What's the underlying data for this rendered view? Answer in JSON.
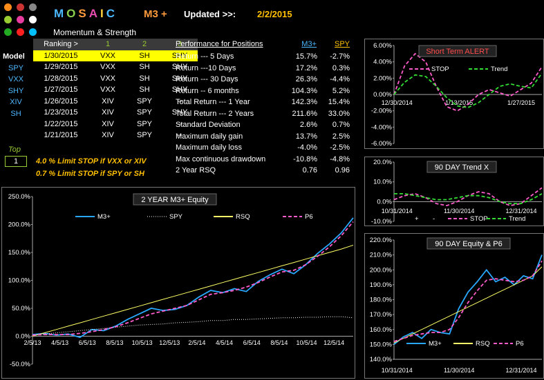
{
  "header": {
    "title_letters": [
      "M",
      "O",
      "S",
      "A",
      "I",
      "C"
    ],
    "title_colors": [
      "#4cb8ff",
      "#8ad24c",
      "#ff9a3c",
      "#e84cb0",
      "#ffd23c",
      "#4cb8ff"
    ],
    "model": "M3 +",
    "updated_label": "Updated >>:",
    "updated_date": "2/2/2015",
    "subtitle": "Momentum & Strength",
    "logo_colors": [
      "#ff8c1a",
      "#cc3333",
      "#888888",
      "#9acd32",
      "#e83ca0",
      "#ffffff",
      "#ff2020",
      "#00bfff",
      "#22aa22"
    ]
  },
  "ranking": {
    "header": [
      "Ranking >",
      "1",
      "2",
      "3"
    ],
    "rows": [
      {
        "label": "Model",
        "date": "1/30/2015",
        "r1": "VXX",
        "r2": "SH",
        "r3": "SHY"
      },
      {
        "label": "SPY",
        "date": "1/29/2015",
        "r1": "VXX",
        "r2": "SH",
        "r3": "SHY"
      },
      {
        "label": "VXX",
        "date": "1/28/2015",
        "r1": "VXX",
        "r2": "SH",
        "r3": "SHY"
      },
      {
        "label": "SHY",
        "date": "1/27/2015",
        "r1": "VXX",
        "r2": "SH",
        "r3": "SHY"
      },
      {
        "label": "XIV",
        "date": "1/26/2015",
        "r1": "XIV",
        "r2": "SPY",
        "r3": "--"
      },
      {
        "label": "SH",
        "date": "1/23/2015",
        "r1": "XIV",
        "r2": "SPY",
        "r3": "SHY"
      },
      {
        "label": "",
        "date": "1/22/2015",
        "r1": "XIV",
        "r2": "SPY",
        "r3": "--"
      },
      {
        "label": "",
        "date": "1/21/2015",
        "r1": "XIV",
        "r2": "SPY",
        "r3": "--"
      }
    ],
    "top_label": "Top",
    "top_value": "1",
    "limit1": "4.0 %   Limit STOP if VXX or XIV",
    "limit2": "0.7 %   Limit STOP if SPY or SH"
  },
  "performance": {
    "title": "Performance for Positions",
    "col1": "M3+",
    "col2": "SPY",
    "rows": [
      {
        "label": "Return --- 5 Days",
        "m3": "15.7%",
        "spy": "-2.7%"
      },
      {
        "label": "Return ---10 Days",
        "m3": "17.2%",
        "spy": "0.3%"
      },
      {
        "label": "Return --- 30 Days",
        "m3": "26.3%",
        "spy": "-4.4%"
      },
      {
        "label": "Return -- 6 months",
        "m3": "104.3%",
        "spy": "5.2%"
      },
      {
        "label": "Total Return --- 1 Year",
        "m3": "142.3%",
        "spy": "15.4%"
      },
      {
        "label": "Total Return --- 2 Years",
        "m3": "211.6%",
        "spy": "33.0%"
      },
      {
        "label": "Standard Deviation",
        "m3": "2.6%",
        "spy": "0.7%"
      },
      {
        "label": "Maximum daily gain",
        "m3": "13.7%",
        "spy": "2.5%"
      },
      {
        "label": "Maximum daily loss",
        "m3": "-4.0%",
        "spy": "-2.5%"
      },
      {
        "label": "Max continuous drawdown",
        "m3": "-10.8%",
        "spy": "-4.8%"
      },
      {
        "label": "2 Year RSQ",
        "m3": "0.76",
        "spy": "0.96"
      }
    ]
  },
  "chart_data": [
    {
      "type": "line",
      "title": "2  YEAR   M3+  Equity",
      "x_ticks": [
        "2/5/13",
        "4/5/13",
        "6/5/13",
        "8/5/13",
        "10/5/13",
        "12/5/13",
        "2/5/14",
        "4/5/14",
        "6/5/14",
        "8/5/14",
        "10/5/14",
        "12/5/14"
      ],
      "y_ticks": [
        "-50.0%",
        "0.0%",
        "50.0%",
        "100.0%",
        "150.0%",
        "200.0%",
        "250.0%"
      ],
      "ylim": [
        -50,
        250
      ],
      "legend": [
        "M3+",
        "SPY",
        "RSQ",
        "P6"
      ],
      "series": [
        {
          "name": "M3+",
          "color": "#29a8ff",
          "values": [
            3,
            5,
            2,
            4,
            -2,
            12,
            10,
            18,
            30,
            40,
            50,
            46,
            48,
            55,
            70,
            82,
            78,
            85,
            80,
            98,
            110,
            120,
            112,
            128,
            148,
            165,
            185,
            212
          ]
        },
        {
          "name": "SPY",
          "color": "#ffffff",
          "values": [
            2,
            4,
            6,
            8,
            10,
            12,
            14,
            16,
            18,
            20,
            21,
            22,
            24,
            25,
            26,
            28,
            28,
            30,
            30,
            31,
            32,
            33,
            33,
            34,
            34,
            35,
            35,
            33
          ]
        },
        {
          "name": "RSQ",
          "color": "#ffff66",
          "values": [
            0,
            6,
            12,
            18,
            24,
            30,
            36,
            42,
            48,
            54,
            60,
            66,
            72,
            78,
            84,
            90,
            96,
            102,
            108,
            114,
            120,
            126,
            132,
            138,
            144,
            150,
            156,
            163
          ]
        },
        {
          "name": "P6",
          "color": "#ff5ccb",
          "values": [
            2,
            3,
            3,
            3,
            5,
            8,
            12,
            17,
            24,
            32,
            40,
            45,
            50,
            55,
            65,
            75,
            78,
            82,
            88,
            96,
            106,
            115,
            118,
            128,
            143,
            160,
            180,
            205
          ]
        }
      ]
    },
    {
      "type": "line",
      "title": "Short  Term  ALERT",
      "x_ticks": [
        "12/30/2014",
        "1/13/2015",
        "1/27/2015"
      ],
      "y_ticks": [
        "-6.00%",
        "-4.00%",
        "-2.00%",
        "0.00%",
        "2.00%",
        "4.00%",
        "6.00%"
      ],
      "ylim": [
        -6,
        6
      ],
      "legend": [
        "STOP",
        "Trend"
      ],
      "series": [
        {
          "name": "STOP",
          "color": "#ff5ccb",
          "values": [
            0,
            3.5,
            5,
            4,
            1,
            -1.5,
            -2,
            -1.2,
            0,
            0.6,
            0.2,
            -0.2,
            0.6,
            1.4,
            3.4
          ]
        },
        {
          "name": "Trend",
          "color": "#33dd33",
          "values": [
            0,
            1.5,
            2.4,
            2.2,
            1,
            -0.4,
            -1.4,
            -1.6,
            -1,
            0,
            1,
            1.3,
            1,
            0.8,
            2.6
          ]
        }
      ]
    },
    {
      "type": "line",
      "title": "90 DAY Trend X",
      "x_ticks": [
        "10/31/2014",
        "11/30/2014",
        "12/31/2014"
      ],
      "y_ticks": [
        "-10.0%",
        "0.0%",
        "10.0%",
        "20.0%"
      ],
      "ylim": [
        -10,
        20
      ],
      "legend": [
        "+",
        "-",
        "STOP",
        "Trend"
      ],
      "series": [
        {
          "name": "STOP",
          "color": "#ff5ccb",
          "values": [
            1,
            3,
            4,
            2,
            -1,
            -2,
            0,
            3,
            5,
            4,
            0,
            -2,
            -1,
            3,
            7
          ]
        },
        {
          "name": "Trend",
          "color": "#33dd33",
          "values": [
            4,
            4,
            3,
            2,
            1,
            1,
            2,
            3,
            3,
            2,
            0,
            -1,
            -1,
            1,
            4
          ]
        }
      ]
    },
    {
      "type": "line",
      "title": "90 DAY  Equity & P6",
      "x_ticks": [
        "10/31/2014",
        "11/30/2014",
        "12/31/2014"
      ],
      "y_ticks": [
        "140.0%",
        "150.0%",
        "160.0%",
        "170.0%",
        "180.0%",
        "190.0%",
        "200.0%",
        "210.0%",
        "220.0%"
      ],
      "ylim": [
        140,
        220
      ],
      "legend": [
        "M3+",
        "RSQ",
        "P6"
      ],
      "series": [
        {
          "name": "M3+",
          "color": "#29a8ff",
          "values": [
            150,
            155,
            158,
            154,
            160,
            158,
            157,
            174,
            185,
            192,
            200,
            192,
            195,
            190,
            196,
            194,
            210
          ]
        },
        {
          "name": "RSQ",
          "color": "#ffff66",
          "values": [
            151,
            154,
            157,
            160,
            163,
            166,
            169,
            172,
            175,
            178,
            181,
            184,
            187,
            190,
            193,
            196,
            202
          ]
        },
        {
          "name": "P6",
          "color": "#ff5ccb",
          "values": [
            152,
            154,
            156,
            157,
            158,
            158,
            160,
            168,
            178,
            186,
            193,
            194,
            193,
            192,
            193,
            196,
            206
          ]
        }
      ]
    }
  ]
}
